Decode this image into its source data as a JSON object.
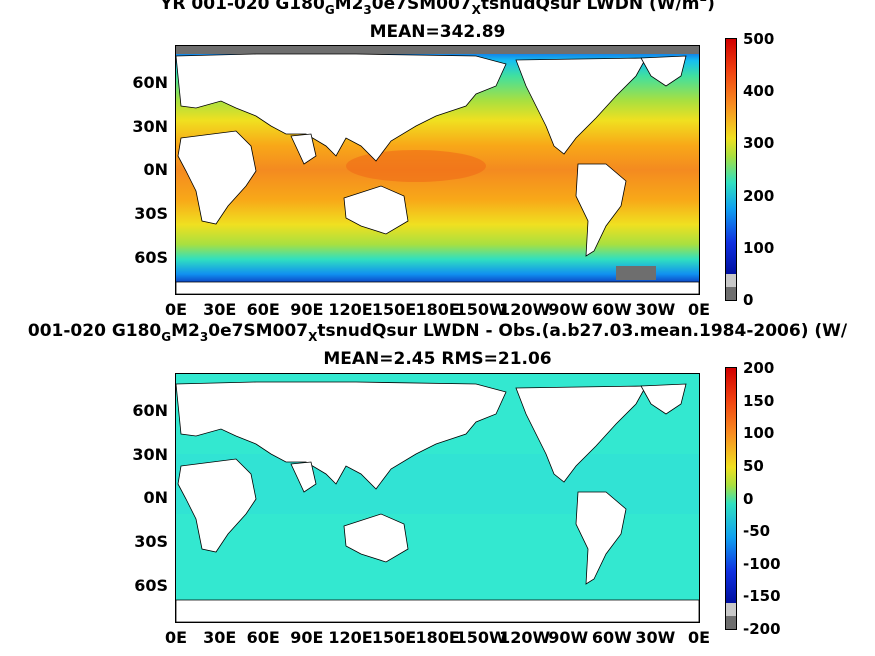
{
  "panels": [
    {
      "title_line1": {
        "prefix": "YR 001-020 G180",
        "sub1": "G",
        "mid1": "M2",
        "sub2": "3",
        "mid2": "0e7SM007",
        "sub3": "X",
        "rest": "tsnudQsur LWDN (W/m",
        "sup": "2",
        "end": ")"
      },
      "title_line2": "MEAN=342.89",
      "lat_labels": [
        "60N",
        "30N",
        "0N",
        "30S",
        "60S"
      ],
      "lon_labels": [
        "0E",
        "30E",
        "60E",
        "90E",
        "120E",
        "150E",
        "180E",
        "150W",
        "120W",
        "90W",
        "60W",
        "30W",
        "0E"
      ],
      "colorbar_ticks": [
        "500",
        "400",
        "300",
        "200",
        "100",
        "0"
      ]
    },
    {
      "title_line1": {
        "prefix": "001-020 G180",
        "sub1": "G",
        "mid1": "M2",
        "sub2": "3",
        "mid2": "0e7SM007",
        "sub3": "X",
        "rest": "tsnudQsur LWDN - Obs.(a.b27.03.mean.1984-2006) (W/",
        "sup": "",
        "end": ""
      },
      "title_line2": "MEAN=2.45 RMS=21.06",
      "lat_labels": [
        "60N",
        "30N",
        "0N",
        "30S",
        "60S"
      ],
      "lon_labels": [
        "0E",
        "30E",
        "60E",
        "90E",
        "120E",
        "150E",
        "180E",
        "150W",
        "120W",
        "90W",
        "60W",
        "30W",
        "0E"
      ],
      "colorbar_ticks": [
        "200",
        "150",
        "100",
        "50",
        "0",
        "-50",
        "-100",
        "-150",
        "-200"
      ]
    }
  ],
  "colors": {
    "land": "#ffffff",
    "missing": "#6e6e6e",
    "ocean_diff": "#33e8d0"
  }
}
